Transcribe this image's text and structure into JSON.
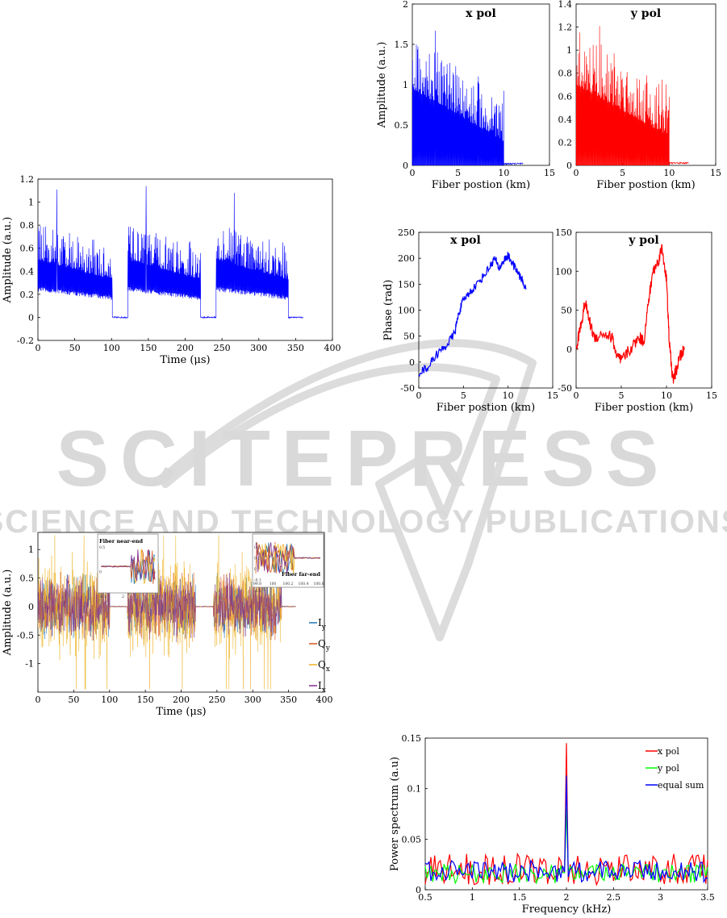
{
  "watermark": {
    "title": "SCITEPRESS",
    "subtitle": "SCIENCE AND TECHNOLOGY PUBLICATIONS",
    "color": "#d9d9d9"
  },
  "chart_data": [
    {
      "id": "time-trace",
      "type": "line",
      "xlabel": "Time (μs)",
      "ylabel": "Amplitude (a.u.)",
      "xlim": [
        0,
        400
      ],
      "ylim": [
        -0.2,
        1.2
      ],
      "xticks": [
        "0",
        "50",
        "100",
        "150",
        "200",
        "250",
        "300",
        "350",
        "400"
      ],
      "yticks": [
        "-0.2",
        "0",
        "0.2",
        "0.4",
        "0.6",
        "0.8",
        "1",
        "1.2"
      ],
      "series": [
        {
          "color": "#0000ff",
          "segments": [
            {
              "x0": 0,
              "x1": 101,
              "envelope_start": 0.5,
              "envelope_end": 0.33,
              "noise": 0.22,
              "peak": 1.11
            },
            {
              "x0": 101,
              "x1": 122,
              "flat": 0.0
            },
            {
              "x0": 122,
              "x1": 221,
              "envelope_start": 0.5,
              "envelope_end": 0.33,
              "noise": 0.22,
              "peak": 1.14
            },
            {
              "x0": 221,
              "x1": 242,
              "flat": 0.0
            },
            {
              "x0": 242,
              "x1": 340,
              "envelope_start": 0.5,
              "envelope_end": 0.33,
              "noise": 0.22,
              "peak": 1.08
            },
            {
              "x0": 340,
              "x1": 360,
              "flat": 0.0
            }
          ]
        }
      ]
    },
    {
      "id": "amp-x",
      "type": "line",
      "title": "x pol",
      "xlabel": "Fiber postion (km)",
      "ylabel": "Amplitude (a.u.)",
      "xlim": [
        0,
        15
      ],
      "ylim": [
        0,
        2
      ],
      "xticks": [
        "0",
        "5",
        "10",
        "15"
      ],
      "yticks": [
        "0",
        "0.5",
        "1",
        "1.5",
        "2"
      ],
      "series": [
        {
          "color": "#0000ff",
          "segments": [
            {
              "x0": 0,
              "x1": 10,
              "envelope_start": 0.95,
              "envelope_end": 0.3,
              "noise": 0.45,
              "peak": 1.67
            },
            {
              "x0": 10,
              "x1": 12.1,
              "flat": 0.02
            }
          ]
        }
      ]
    },
    {
      "id": "amp-y",
      "type": "line",
      "title": "y pol",
      "xlabel": "Fiber postion (km)",
      "ylabel": "",
      "xlim": [
        0,
        15
      ],
      "ylim": [
        0,
        1.4
      ],
      "xticks": [
        "0",
        "5",
        "10",
        "15"
      ],
      "yticks": [
        "0",
        "0.2",
        "0.4",
        "0.6",
        "0.8",
        "1",
        "1.2",
        "1.4"
      ],
      "series": [
        {
          "color": "#ff0000",
          "segments": [
            {
              "x0": 0,
              "x1": 10,
              "envelope_start": 0.7,
              "envelope_end": 0.25,
              "noise": 0.35,
              "peak": 1.21
            },
            {
              "x0": 10,
              "x1": 12.1,
              "flat": 0.02
            }
          ]
        }
      ]
    },
    {
      "id": "phase-x",
      "type": "line",
      "title": "x pol",
      "xlabel": "Fiber postion (km)",
      "ylabel": "Phase (rad)",
      "xlim": [
        0,
        15
      ],
      "ylim": [
        -50,
        250
      ],
      "xticks": [
        "0",
        "5",
        "10",
        "15"
      ],
      "yticks": [
        "-50",
        "0",
        "50",
        "100",
        "150",
        "200",
        "250"
      ],
      "series": [
        {
          "color": "#0000ff",
          "x": [
            0,
            1,
            2,
            3,
            4,
            4.5,
            5,
            6,
            7,
            8,
            8.5,
            9,
            9.5,
            10,
            10.5,
            11,
            11.5,
            12
          ],
          "y": [
            -20,
            -10,
            15,
            30,
            55,
            95,
            120,
            140,
            160,
            185,
            200,
            180,
            195,
            205,
            190,
            175,
            160,
            140
          ]
        }
      ]
    },
    {
      "id": "phase-y",
      "type": "line",
      "title": "y pol",
      "xlabel": "Fiber postion (km)",
      "ylabel": "",
      "xlim": [
        0,
        15
      ],
      "ylim": [
        -50,
        150
      ],
      "xticks": [
        "0",
        "5",
        "10",
        "15"
      ],
      "yticks": [
        "-50",
        "0",
        "50",
        "100",
        "150"
      ],
      "series": [
        {
          "color": "#ff0000",
          "x": [
            0,
            0.5,
            1,
            1.5,
            2,
            3,
            4,
            4.5,
            5,
            6,
            7,
            7.5,
            8,
            8.5,
            9,
            9.5,
            10,
            10.3,
            10.7,
            11,
            11.5,
            12
          ],
          "y": [
            0,
            30,
            60,
            35,
            15,
            20,
            15,
            -10,
            -15,
            0,
            15,
            10,
            60,
            100,
            110,
            130,
            90,
            10,
            -40,
            -30,
            -10,
            0
          ]
        }
      ]
    },
    {
      "id": "iq-trace",
      "type": "line",
      "xlabel": "Time (μs)",
      "ylabel": "Amplitude (a.u.)",
      "xlim": [
        0,
        400
      ],
      "ylim": [
        -1.5,
        1.3
      ],
      "xticks": [
        "0",
        "50",
        "100",
        "150",
        "200",
        "250",
        "300",
        "350",
        "400"
      ],
      "yticks": [
        "-1",
        "-0.5",
        "0",
        "0.5",
        "1"
      ],
      "series": [
        {
          "name": "I",
          "sub": "y",
          "color": "#1f77b4"
        },
        {
          "name": "Q",
          "sub": "y",
          "color": "#d95319"
        },
        {
          "name": "Q",
          "sub": "x",
          "color": "#edb120"
        },
        {
          "name": "I",
          "sub": "x",
          "color": "#7e2f8e"
        }
      ],
      "bursts": [
        [
          0,
          100
        ],
        [
          125,
          220
        ],
        [
          245,
          340
        ]
      ],
      "insets": [
        {
          "label": "Fiber near-end",
          "xtick": "2",
          "yticks": [
            "0.5",
            "0",
            "-0.5"
          ]
        },
        {
          "label": "Fiber far-end",
          "xticks": [
            "99.8",
            "100",
            "100.2",
            "100.4",
            "100.6"
          ],
          "yticks": [
            "0.2",
            "0.1",
            "0",
            "-0.1",
            "-0.2"
          ]
        }
      ]
    },
    {
      "id": "spectrum",
      "type": "line",
      "xlabel": "Frequency (kHz)",
      "ylabel": "Power spectrum (a.u)",
      "xlim": [
        0.5,
        3.5
      ],
      "ylim": [
        0,
        0.15
      ],
      "xticks": [
        "0.5",
        "1",
        "1.5",
        "2",
        "2.5",
        "3",
        "3.5"
      ],
      "yticks": [
        "0",
        "0.05",
        "0.1",
        "0.15"
      ],
      "peak": {
        "x": 2,
        "values": {
          "x pol": 0.145,
          "y pol": 0.08,
          "equal sum": 0.113
        }
      },
      "series": [
        {
          "name": "x pol",
          "color": "#ff0000",
          "base": 0.02,
          "spread": 0.026
        },
        {
          "name": "y pol",
          "color": "#00ff00",
          "base": 0.016,
          "spread": 0.016
        },
        {
          "name": "equal sum",
          "color": "#0000ff",
          "base": 0.018,
          "spread": 0.018
        }
      ]
    }
  ]
}
